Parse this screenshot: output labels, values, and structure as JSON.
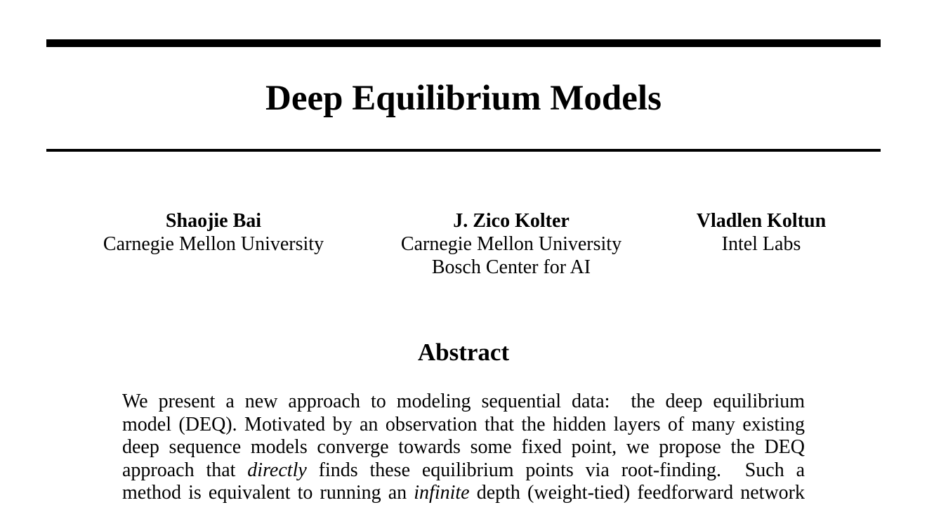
{
  "paper": {
    "title": "Deep Equilibrium Models",
    "authors": [
      {
        "name": "Shaojie Bai",
        "affiliations": [
          "Carnegie Mellon University"
        ]
      },
      {
        "name": "J. Zico Kolter",
        "affiliations": [
          "Carnegie Mellon University",
          "Bosch Center for AI"
        ]
      },
      {
        "name": "Vladlen Koltun",
        "affiliations": [
          "Intel Labs"
        ]
      }
    ],
    "abstract_heading": "Abstract",
    "abstract_lines": [
      [
        "We present a new approach to modeling sequential data:  the deep equilibrium"
      ],
      [
        "model (DEQ). Motivated by an observation that the hidden layers of many existing"
      ],
      [
        "deep sequence models converge towards some fixed point, we propose the DEQ"
      ],
      [
        "approach that ",
        "directly",
        " finds these equilibrium points via root-finding.  Such a"
      ],
      [
        "method is equivalent to running an ",
        "infinite",
        " depth (weight-tied) feedforward network"
      ]
    ]
  }
}
